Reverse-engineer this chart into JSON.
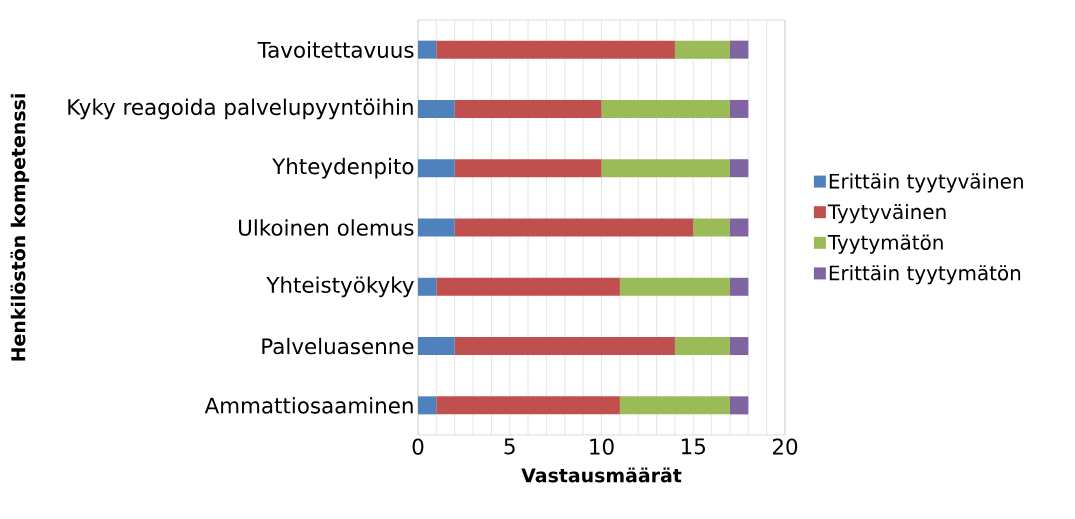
{
  "chart_data": {
    "type": "bar",
    "orientation": "horizontal",
    "stacked": true,
    "xlabel": "Vastausmäärät",
    "ylabel": "Henkilöstön kompetenssi",
    "categories": [
      "Tavoitettavuus",
      "Kyky reagoida palvelupyyntöihin",
      "Yhteydenpito",
      "Ulkoinen olemus",
      "Yhteistyökyky",
      "Palveluasenne",
      "Ammattiosaaminen"
    ],
    "series": [
      {
        "name": "Erittäin tyytyväinen",
        "color": "#4f81bd",
        "values": [
          1,
          2,
          2,
          2,
          1,
          2,
          1
        ]
      },
      {
        "name": "Tyytyväinen",
        "color": "#c0504d",
        "values": [
          13,
          8,
          8,
          13,
          10,
          12,
          10
        ]
      },
      {
        "name": "Tyytymätön",
        "color": "#9bbb59",
        "values": [
          3,
          7,
          7,
          2,
          6,
          3,
          6
        ]
      },
      {
        "name": "Erittäin tyytymätön",
        "color": "#8064a2",
        "values": [
          1,
          1,
          1,
          1,
          1,
          1,
          1
        ]
      }
    ],
    "xlim": [
      0,
      20
    ],
    "xticks": [
      0,
      {
        "value": 1,
        "label": null
      },
      {
        "value": 2,
        "label": null
      },
      {
        "value": 3,
        "label": null
      },
      {
        "value": 4,
        "label": null
      },
      5,
      {
        "value": 6,
        "label": null
      },
      {
        "value": 7,
        "label": null
      },
      {
        "value": 8,
        "label": null
      },
      {
        "value": 9,
        "label": null
      },
      10,
      {
        "value": 11,
        "label": null
      },
      {
        "value": 12,
        "label": null
      },
      {
        "value": 13,
        "label": null
      },
      {
        "value": 14,
        "label": null
      },
      15,
      {
        "value": 16,
        "label": null
      },
      {
        "value": 17,
        "label": null
      },
      {
        "value": 18,
        "label": null
      },
      {
        "value": 19,
        "label": null
      },
      20
    ],
    "grid": "x",
    "legend": "right"
  }
}
